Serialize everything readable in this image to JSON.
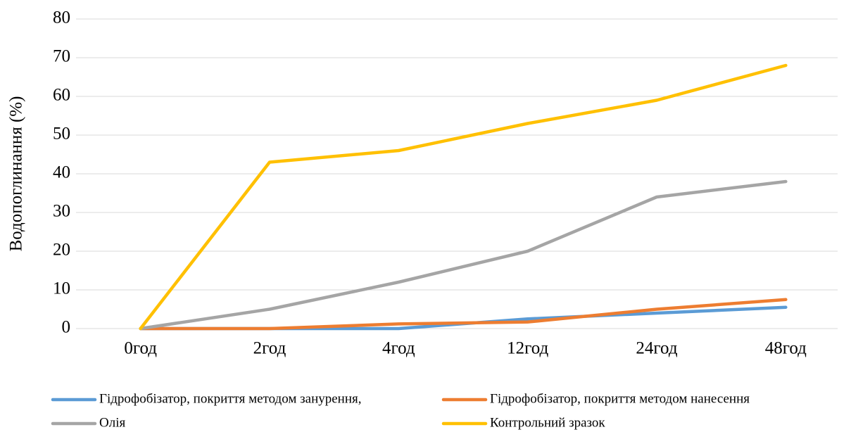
{
  "chart_data": {
    "type": "line",
    "y_label": "Водопоглинання (%)",
    "categories": [
      "0год",
      "2год",
      "4год",
      "12год",
      "24год",
      "48год"
    ],
    "series": [
      {
        "name": "Гідрофобізатор, покриття методом занурення,",
        "color": "#5b9bd5",
        "values": [
          0,
          0,
          0,
          2.5,
          4,
          5.5
        ]
      },
      {
        "name": "Гідрофобізатор, покриття методом нанесення",
        "color": "#ed7d31",
        "values": [
          0,
          0,
          1.2,
          1.7,
          5,
          7.5
        ]
      },
      {
        "name": "Олія",
        "color": "#a5a5a5",
        "values": [
          0,
          5,
          12,
          20,
          34,
          38
        ]
      },
      {
        "name": "Контрольний зразок",
        "color": "#ffc000",
        "values": [
          0,
          43,
          46,
          53,
          59,
          68
        ]
      }
    ],
    "ylim": [
      0,
      80
    ],
    "yticks": [
      0,
      10,
      20,
      30,
      40,
      50,
      60,
      70,
      80
    ],
    "grid": true,
    "legend": "bottom"
  }
}
